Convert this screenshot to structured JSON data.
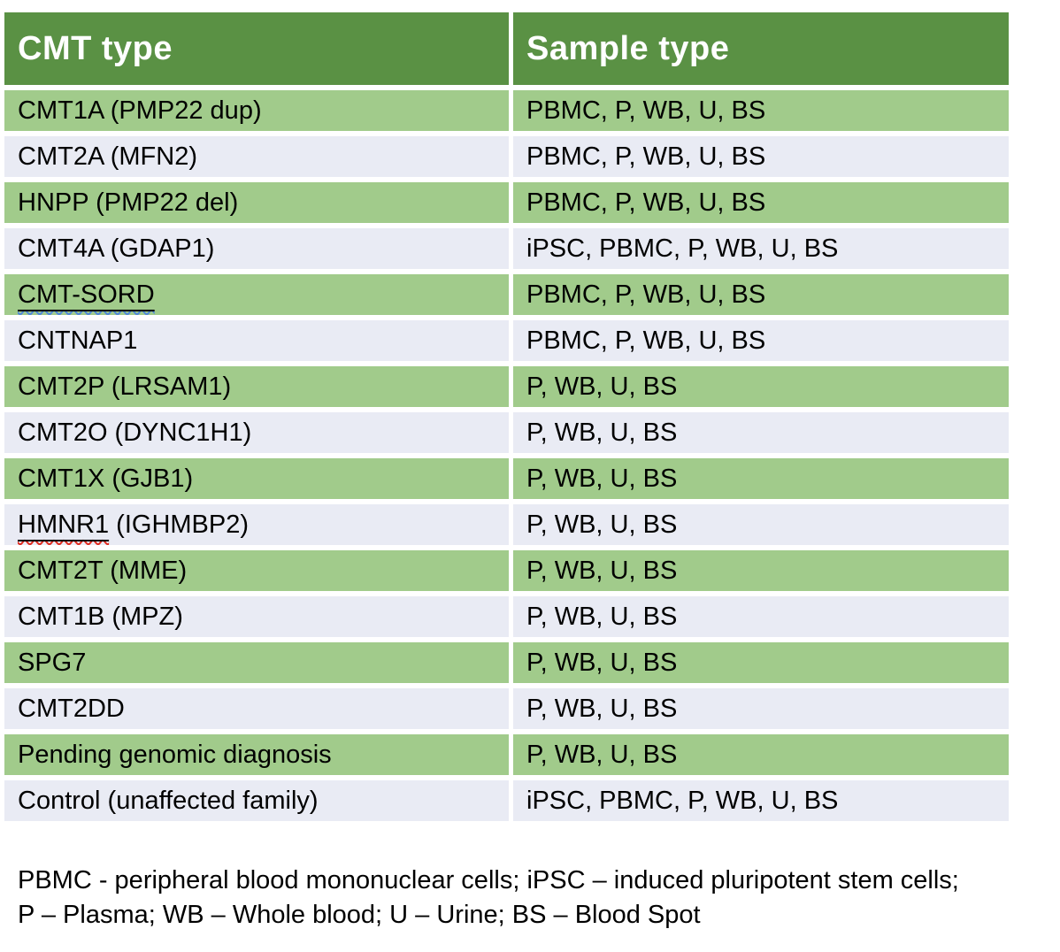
{
  "colors": {
    "header_bg": "#5a9144",
    "row_green": "#a1cb8b",
    "row_gray": "#e9ebf4",
    "header_text": "#ffffff",
    "body_text": "#000000",
    "squiggle_blue": "#4f87d8",
    "squiggle_red": "#e02b20",
    "page_bg": "#ffffff"
  },
  "table": {
    "columns": [
      "CMT type",
      "Sample type"
    ],
    "rows": [
      {
        "cmt_decorated": "",
        "cmt_plain": "CMT1A (PMP22 dup)",
        "squiggle": null,
        "sample": "PBMC, P, WB, U, BS"
      },
      {
        "cmt_decorated": "",
        "cmt_plain": "CMT2A (MFN2)",
        "squiggle": null,
        "sample": "PBMC, P, WB, U, BS"
      },
      {
        "cmt_decorated": "",
        "cmt_plain": "HNPP (PMP22 del)",
        "squiggle": null,
        "sample": "PBMC, P, WB, U, BS"
      },
      {
        "cmt_decorated": "",
        "cmt_plain": "CMT4A (GDAP1)",
        "squiggle": null,
        "sample": "iPSC, PBMC, P, WB, U, BS"
      },
      {
        "cmt_decorated": "CMT-SORD",
        "cmt_plain": "",
        "squiggle": "blue",
        "sample": "PBMC, P, WB, U, BS"
      },
      {
        "cmt_decorated": "",
        "cmt_plain": "CNTNAP1",
        "squiggle": null,
        "sample": "PBMC, P, WB, U, BS"
      },
      {
        "cmt_decorated": "",
        "cmt_plain": "CMT2P (LRSAM1)",
        "squiggle": null,
        "sample": "P, WB, U, BS"
      },
      {
        "cmt_decorated": "",
        "cmt_plain": "CMT2O (DYNC1H1)",
        "squiggle": null,
        "sample": "P, WB, U, BS"
      },
      {
        "cmt_decorated": "",
        "cmt_plain": "CMT1X (GJB1)",
        "squiggle": null,
        "sample": "P, WB, U, BS"
      },
      {
        "cmt_decorated": "HMNR1",
        "cmt_plain": " (IGHMBP2)",
        "squiggle": "red",
        "sample": "P, WB, U, BS"
      },
      {
        "cmt_decorated": "",
        "cmt_plain": "CMT2T (MME)",
        "squiggle": null,
        "sample": "P, WB, U, BS"
      },
      {
        "cmt_decorated": "",
        "cmt_plain": "CMT1B (MPZ)",
        "squiggle": null,
        "sample": "P, WB, U, BS"
      },
      {
        "cmt_decorated": "",
        "cmt_plain": "SPG7",
        "squiggle": null,
        "sample": "P, WB, U, BS"
      },
      {
        "cmt_decorated": "",
        "cmt_plain": "CMT2DD",
        "squiggle": null,
        "sample": "P, WB, U, BS"
      },
      {
        "cmt_decorated": "",
        "cmt_plain": "Pending genomic diagnosis",
        "squiggle": null,
        "sample": "P, WB, U, BS"
      },
      {
        "cmt_decorated": "",
        "cmt_plain": "Control (unaffected family)",
        "squiggle": null,
        "sample": "iPSC, PBMC, P, WB, U, BS"
      }
    ]
  },
  "legend": {
    "line1": "PBMC - peripheral blood mononuclear cells; iPSC – induced pluripotent stem cells;",
    "line2": "P – Plasma; WB – Whole blood; U – Urine; BS – Blood Spot"
  }
}
